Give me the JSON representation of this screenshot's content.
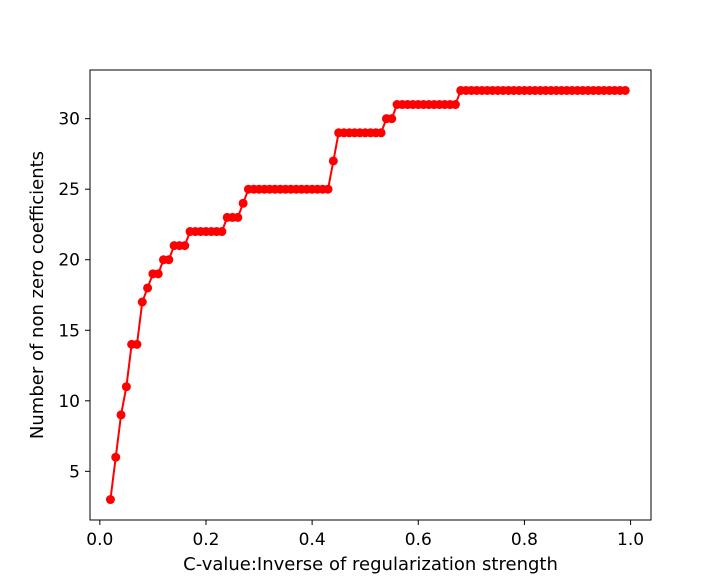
{
  "chart_data": {
    "type": "line",
    "title": "",
    "xlabel": "C-value:Inverse of regularization strength",
    "ylabel": "Number of non zero coefficients",
    "xlim": [
      -0.0185,
      1.0385
    ],
    "ylim": [
      1.55,
      33.45
    ],
    "xticks": [
      0.0,
      0.2,
      0.4,
      0.6,
      0.8,
      1.0
    ],
    "xtick_labels": [
      "0.0",
      "0.2",
      "0.4",
      "0.6",
      "0.8",
      "1.0"
    ],
    "yticks": [
      5,
      10,
      15,
      20,
      25,
      30
    ],
    "ytick_labels": [
      "5",
      "10",
      "15",
      "20",
      "25",
      "30"
    ],
    "grid": false,
    "color": "#ff0000",
    "marker": "circle",
    "series": [
      {
        "x": [
          0.02,
          0.03,
          0.04,
          0.05,
          0.06,
          0.07,
          0.08,
          0.09,
          0.1,
          0.11,
          0.12,
          0.13,
          0.14,
          0.15,
          0.16,
          0.17,
          0.18,
          0.19,
          0.2,
          0.21,
          0.22,
          0.23,
          0.24,
          0.25,
          0.26,
          0.27,
          0.28,
          0.29,
          0.3,
          0.31,
          0.32,
          0.33,
          0.34,
          0.35,
          0.36,
          0.37,
          0.38,
          0.39,
          0.4,
          0.41,
          0.42,
          0.43,
          0.44,
          0.45,
          0.46,
          0.47,
          0.48,
          0.49,
          0.5,
          0.51,
          0.52,
          0.53,
          0.54,
          0.55,
          0.56,
          0.57,
          0.58,
          0.59,
          0.6,
          0.61,
          0.62,
          0.63,
          0.64,
          0.65,
          0.66,
          0.67,
          0.68,
          0.69,
          0.7,
          0.71,
          0.72,
          0.73,
          0.74,
          0.75,
          0.76,
          0.77,
          0.78,
          0.79,
          0.8,
          0.81,
          0.82,
          0.83,
          0.84,
          0.85,
          0.86,
          0.87,
          0.88,
          0.89,
          0.9,
          0.91,
          0.92,
          0.93,
          0.94,
          0.95,
          0.96,
          0.97,
          0.98,
          0.99
        ],
        "y": [
          3,
          6,
          9,
          11,
          14,
          14,
          17,
          18,
          19,
          19,
          20,
          20,
          21,
          21,
          21,
          22,
          22,
          22,
          22,
          22,
          22,
          22,
          23,
          23,
          23,
          24,
          25,
          25,
          25,
          25,
          25,
          25,
          25,
          25,
          25,
          25,
          25,
          25,
          25,
          25,
          25,
          25,
          27,
          29,
          29,
          29,
          29,
          29,
          29,
          29,
          29,
          29,
          30,
          30,
          31,
          31,
          31,
          31,
          31,
          31,
          31,
          31,
          31,
          31,
          31,
          31,
          32,
          32,
          32,
          32,
          32,
          32,
          32,
          32,
          32,
          32,
          32,
          32,
          32,
          32,
          32,
          32,
          32,
          32,
          32,
          32,
          32,
          32,
          32,
          32,
          32,
          32,
          32,
          32,
          32,
          32,
          32,
          32
        ]
      }
    ]
  }
}
